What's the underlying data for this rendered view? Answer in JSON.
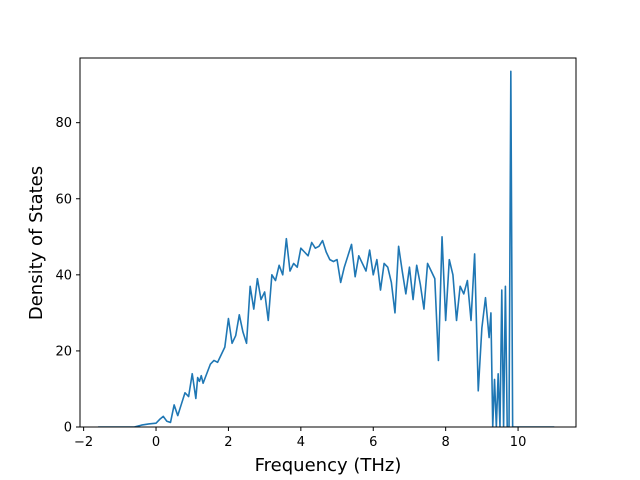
{
  "chart_data": {
    "type": "line",
    "title": "",
    "xlabel": "Frequency (THz)",
    "ylabel": "Density of States",
    "xlim": [
      -2.1,
      11.6
    ],
    "ylim": [
      0,
      97
    ],
    "xticks": [
      -2,
      0,
      2,
      4,
      6,
      8,
      10
    ],
    "yticks": [
      0,
      20,
      40,
      60,
      80
    ],
    "xtick_labels": [
      "−2",
      "0",
      "2",
      "4",
      "6",
      "8",
      "10"
    ],
    "ytick_labels": [
      "0",
      "20",
      "40",
      "60",
      "80"
    ],
    "grid": false,
    "color": "#1f77b4",
    "series": [
      {
        "x": [
          -1.6,
          -0.6,
          -0.4,
          -0.2,
          0.0,
          0.1,
          0.2,
          0.3,
          0.4,
          0.5,
          0.6,
          0.7,
          0.8,
          0.9,
          1.0,
          1.1,
          1.15,
          1.2,
          1.25,
          1.3,
          1.4,
          1.5,
          1.6,
          1.7,
          1.8,
          1.9,
          2.0,
          2.1,
          2.2,
          2.3,
          2.4,
          2.5,
          2.6,
          2.7,
          2.8,
          2.9,
          3.0,
          3.1,
          3.2,
          3.3,
          3.4,
          3.5,
          3.6,
          3.7,
          3.8,
          3.9,
          4.0,
          4.1,
          4.2,
          4.3,
          4.4,
          4.5,
          4.6,
          4.7,
          4.8,
          4.9,
          5.0,
          5.1,
          5.2,
          5.3,
          5.4,
          5.5,
          5.6,
          5.7,
          5.8,
          5.9,
          6.0,
          6.1,
          6.2,
          6.3,
          6.4,
          6.5,
          6.6,
          6.7,
          6.8,
          6.9,
          7.0,
          7.1,
          7.2,
          7.3,
          7.4,
          7.5,
          7.6,
          7.7,
          7.8,
          7.9,
          8.0,
          8.1,
          8.2,
          8.3,
          8.4,
          8.5,
          8.6,
          8.7,
          8.8,
          8.9,
          9.0,
          9.1,
          9.2,
          9.25,
          9.3,
          9.35,
          9.4,
          9.45,
          9.5,
          9.55,
          9.6,
          9.65,
          9.7,
          9.75,
          9.8,
          9.85,
          9.9,
          9.95,
          10.0,
          10.5,
          11.0
        ],
        "y": [
          0,
          0,
          0.5,
          0.8,
          1.0,
          2.0,
          2.8,
          1.5,
          1.2,
          5.8,
          3.0,
          6.0,
          9.0,
          8.0,
          14.0,
          7.5,
          13.0,
          12.0,
          13.5,
          11.5,
          14.0,
          16.5,
          17.5,
          17.0,
          19.0,
          21.0,
          28.5,
          22.0,
          24.0,
          29.5,
          25.0,
          22.0,
          37.0,
          31.0,
          39.0,
          33.5,
          35.5,
          28.0,
          40.0,
          38.5,
          42.5,
          40.0,
          49.5,
          41.0,
          43.0,
          42.0,
          47.0,
          46.0,
          45.0,
          48.5,
          47.0,
          47.5,
          49.0,
          46.0,
          44.0,
          43.5,
          44.0,
          38.0,
          42.0,
          45.0,
          48.0,
          39.5,
          45.0,
          43.0,
          41.0,
          46.5,
          40.0,
          44.0,
          36.0,
          43.0,
          42.0,
          38.0,
          30.0,
          47.5,
          41.0,
          35.0,
          42.0,
          33.5,
          42.5,
          37.5,
          31.0,
          43.0,
          41.0,
          39.0,
          17.5,
          50.0,
          28.0,
          44.0,
          40.0,
          28.0,
          37.0,
          35.0,
          38.5,
          28.0,
          45.5,
          9.5,
          26.0,
          34.0,
          23.5,
          30.0,
          0,
          12.5,
          0,
          14.0,
          0,
          36.0,
          0,
          37.0,
          0,
          0,
          93.5,
          0,
          0,
          0,
          0,
          0,
          0
        ]
      }
    ]
  }
}
